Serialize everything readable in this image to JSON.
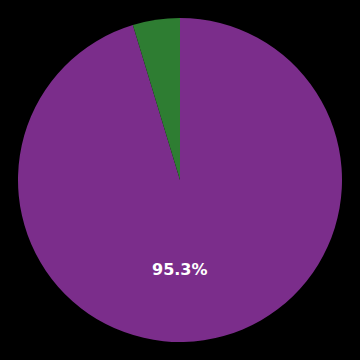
{
  "chart_data": {
    "type": "pie",
    "values": [
      95.3,
      4.7
    ],
    "colors": [
      "#7B2D8B",
      "#2E7D32"
    ],
    "annotations": [
      {
        "text": "95.3%",
        "color": "#ffffff"
      }
    ],
    "data_labels": false
  }
}
